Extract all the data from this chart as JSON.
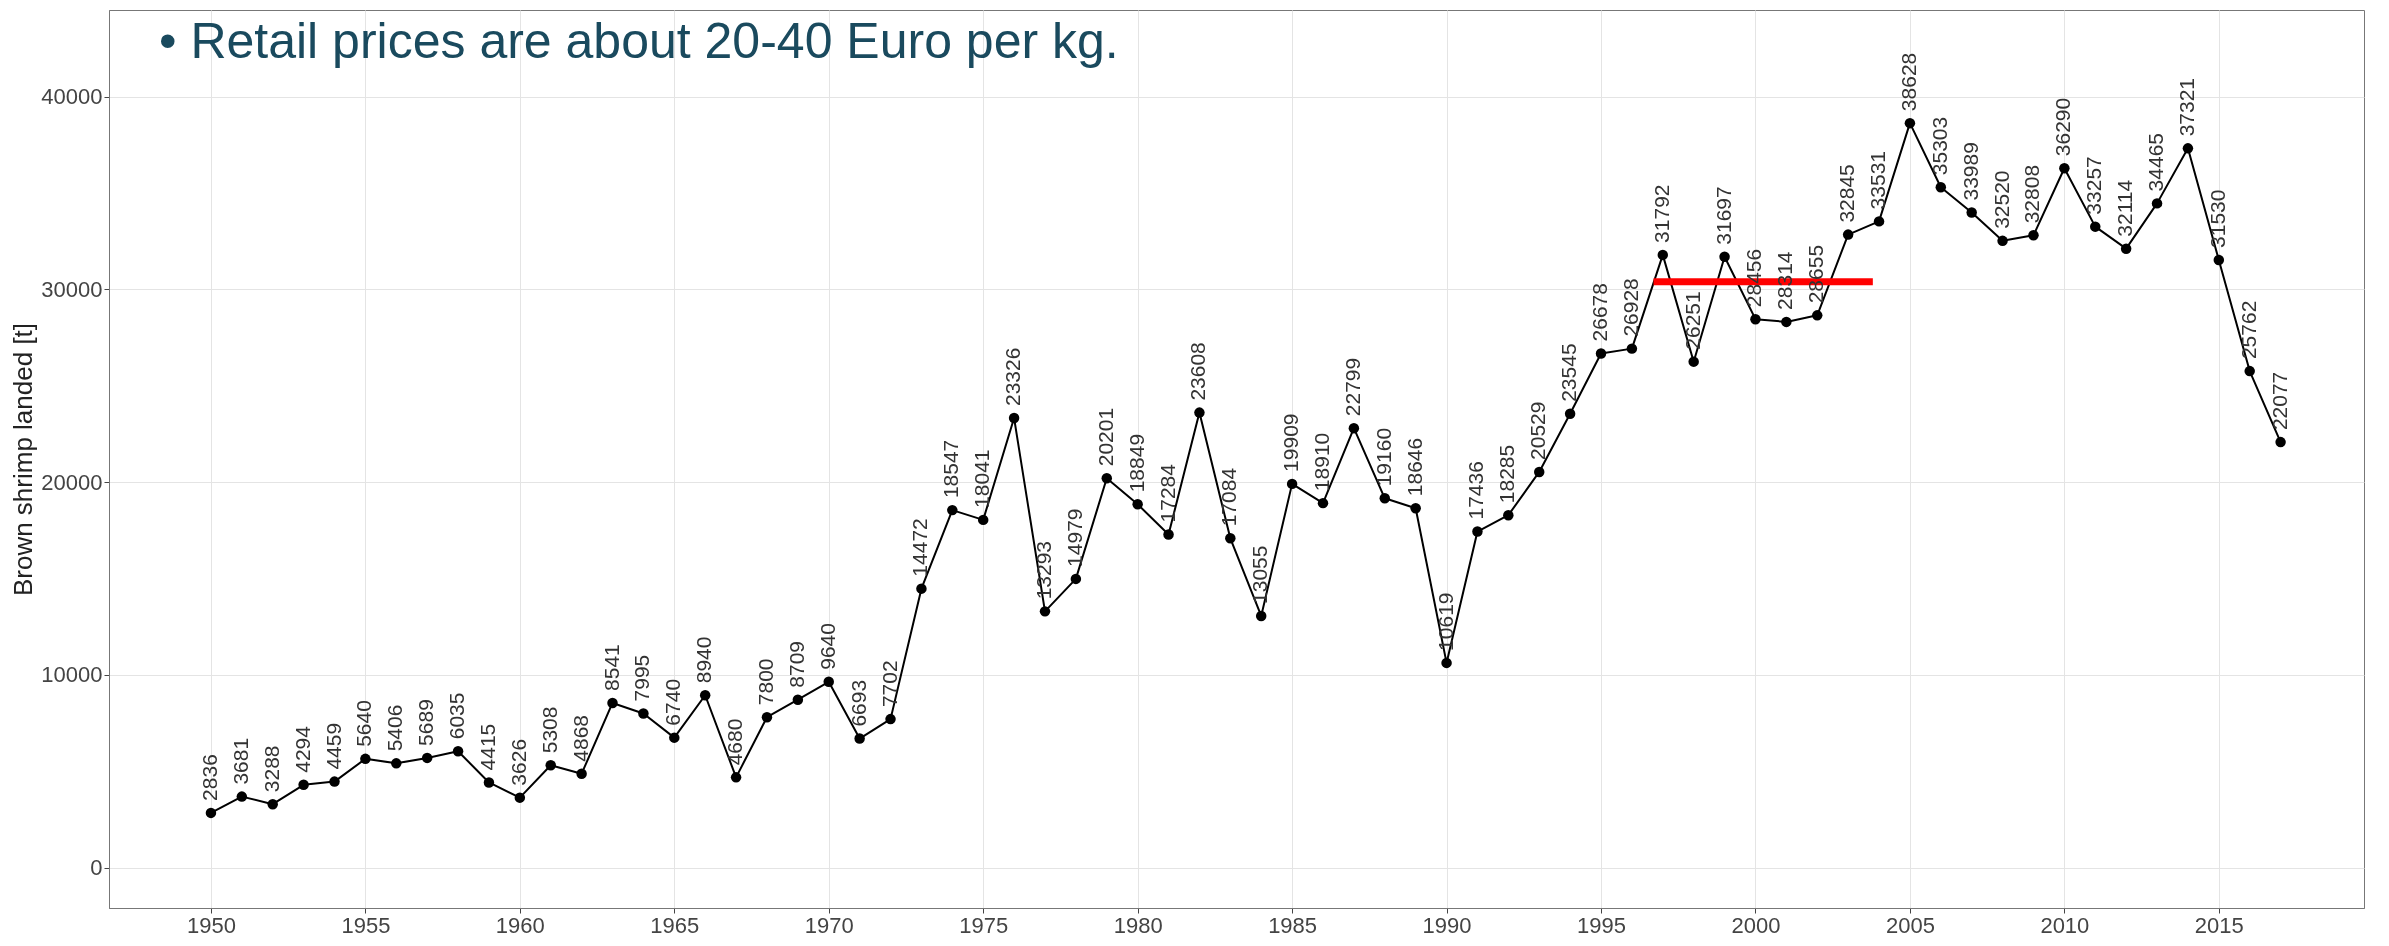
{
  "chart_data": {
    "type": "line",
    "ylabel": "Brown shrimp landed [t]",
    "annotations": [
      "• Retail prices are about 20-40 Euro per kg."
    ],
    "x": [
      1950,
      1951,
      1952,
      1953,
      1954,
      1955,
      1956,
      1957,
      1958,
      1959,
      1960,
      1961,
      1962,
      1963,
      1964,
      1965,
      1966,
      1967,
      1968,
      1969,
      1970,
      1971,
      1972,
      1973,
      1974,
      1975,
      1976,
      1977,
      1978,
      1979,
      1980,
      1981,
      1982,
      1983,
      1984,
      1985,
      1986,
      1987,
      1988,
      1989,
      1990,
      1991,
      1992,
      1993,
      1994,
      1995,
      1996,
      1997,
      1998,
      1999,
      2000,
      2001,
      2002,
      2003,
      2004,
      2005,
      2006,
      2007,
      2008,
      2009,
      2010,
      2011,
      2012,
      2013,
      2014,
      2015,
      2016,
      2017
    ],
    "series": [
      {
        "color": "#000000",
        "values": [
          2836,
          3681,
          3288,
          4294,
          4459,
          5640,
          5406,
          5689,
          6035,
          4415,
          3626,
          5308,
          4868,
          8541,
          7995,
          6740,
          8940,
          4680,
          7800,
          8709,
          9640,
          6693,
          7702,
          14472,
          18547,
          18041,
          23326,
          13293,
          14979,
          20201,
          18849,
          17284,
          23608,
          17084,
          13055,
          19909,
          18910,
          22799,
          19160,
          18646,
          10619,
          17436,
          18285,
          20529,
          23545,
          26678,
          26928,
          31792,
          26251,
          31697,
          28456,
          28314,
          28655,
          32845,
          33531,
          38628,
          35303,
          33989,
          32520,
          32808,
          36290,
          33257,
          32114,
          34465,
          37321,
          31530,
          25762,
          22077
        ]
      },
      {
        "type": "line",
        "color": "#ff0000",
        "marker": "none",
        "data_labels": false,
        "x": [
          1996.7,
          2003.8
        ],
        "values": [
          30400,
          30400
        ]
      }
    ],
    "data_labels": true,
    "marker": "circle",
    "grid": true,
    "xlim": [
      1946.7,
      2019.7
    ],
    "xticks": [
      1950,
      1955,
      1960,
      1965,
      1970,
      1975,
      1980,
      1985,
      1990,
      1995,
      2000,
      2005,
      2010,
      2015
    ],
    "ylim": [
      -2100,
      44500
    ],
    "yticks": [
      0,
      10000,
      20000,
      30000,
      40000
    ]
  }
}
